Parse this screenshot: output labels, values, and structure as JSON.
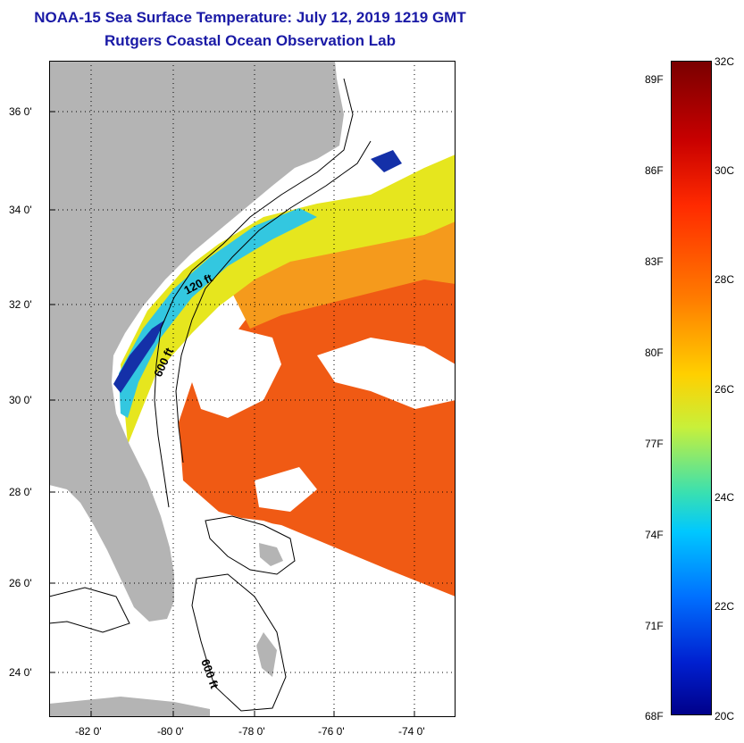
{
  "title": {
    "line1": "NOAA-15 Sea Surface Temperature:  July 12, 2019 1219 GMT",
    "line2": "Rutgers Coastal Ocean Observation Lab"
  },
  "map": {
    "lat_labels": [
      "36 0'",
      "34 0'",
      "32 0'",
      "30 0'",
      "28 0'",
      "26 0'",
      "24 0'"
    ],
    "lon_labels": [
      "-82 0'",
      "-80 0'",
      "-78 0'",
      "-76 0'",
      "-74 0'"
    ],
    "isobath_labels": [
      "120 ft",
      "600 ft",
      "600 ft"
    ],
    "colors": {
      "land": "#b4b4b4",
      "ocean_cloud": "#ffffff",
      "warm": "#f05a14",
      "mid": "#f59a1c",
      "yellow": "#e6e61e",
      "cool": "#33c7e0",
      "cold": "#1430a8"
    }
  },
  "colorbar": {
    "fahrenheit": [
      "89F",
      "86F",
      "83F",
      "80F",
      "77F",
      "74F",
      "71F",
      "68F"
    ],
    "celsius": [
      "32C",
      "30C",
      "28C",
      "26C",
      "24C",
      "22C",
      "20C"
    ],
    "range_c": [
      20,
      32
    ]
  }
}
